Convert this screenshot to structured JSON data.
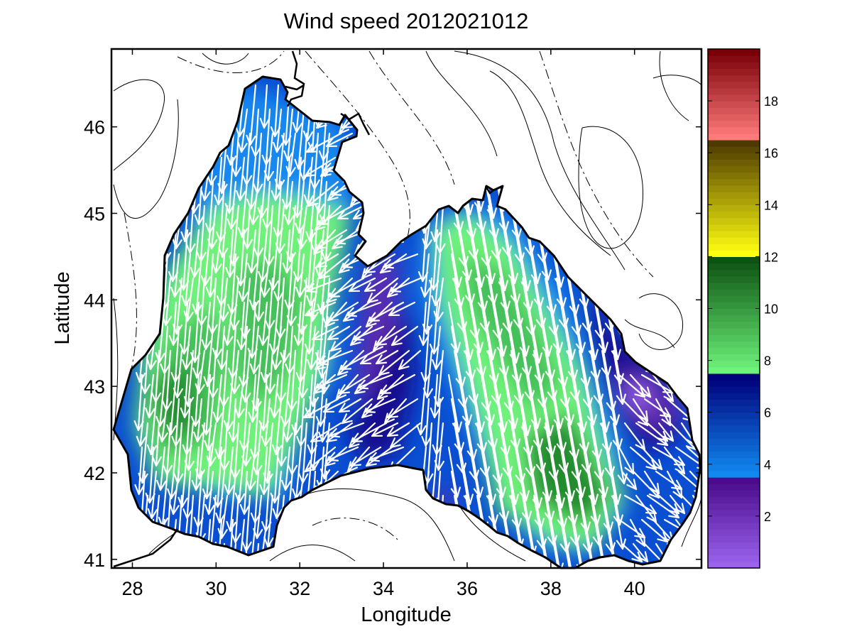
{
  "figure": {
    "title": "Wind speed 2012021012",
    "xlabel": "Longitude",
    "ylabel": "Latitude",
    "x_ticks": [
      "28",
      "30",
      "32",
      "34",
      "36",
      "38",
      "40"
    ],
    "y_ticks": [
      "41",
      "42",
      "43",
      "44",
      "45",
      "46"
    ]
  },
  "colorbar": {
    "ticks": [
      "2",
      "4",
      "6",
      "8",
      "10",
      "12",
      "14",
      "16",
      "18"
    ],
    "range": [
      0,
      20
    ],
    "bands": [
      {
        "from": 0,
        "to": 3.5,
        "light": "#9b63ee",
        "dark": "#4a0c8c"
      },
      {
        "from": 3.5,
        "to": 7.5,
        "light": "#1189f0",
        "dark": "#00007a"
      },
      {
        "from": 7.5,
        "to": 12.0,
        "light": "#6ef27a",
        "dark": "#0c5212"
      },
      {
        "from": 12.0,
        "to": 16.5,
        "light": "#ffff10",
        "dark": "#4e3a00"
      },
      {
        "from": 16.5,
        "to": 20.0,
        "light": "#ff7b7b",
        "dark": "#7a0008"
      }
    ]
  },
  "map": {
    "lon_range": [
      27.5,
      41.6
    ],
    "lat_range": [
      40.9,
      46.9
    ],
    "colormap": [
      "#5b2bb0",
      "#140a90",
      "#0a4fd2",
      "#1488f0",
      "#6ef27a",
      "#45c05a",
      "#228c2d"
    ],
    "high_wind_region_colors": {
      "max": "#228c2d",
      "mid": "#45c05a",
      "light": "#6ef27a"
    },
    "low_wind_region_colors": {
      "min": "#5b2bb0",
      "low": "#140a90",
      "mid": "#0a4fd2"
    }
  }
}
